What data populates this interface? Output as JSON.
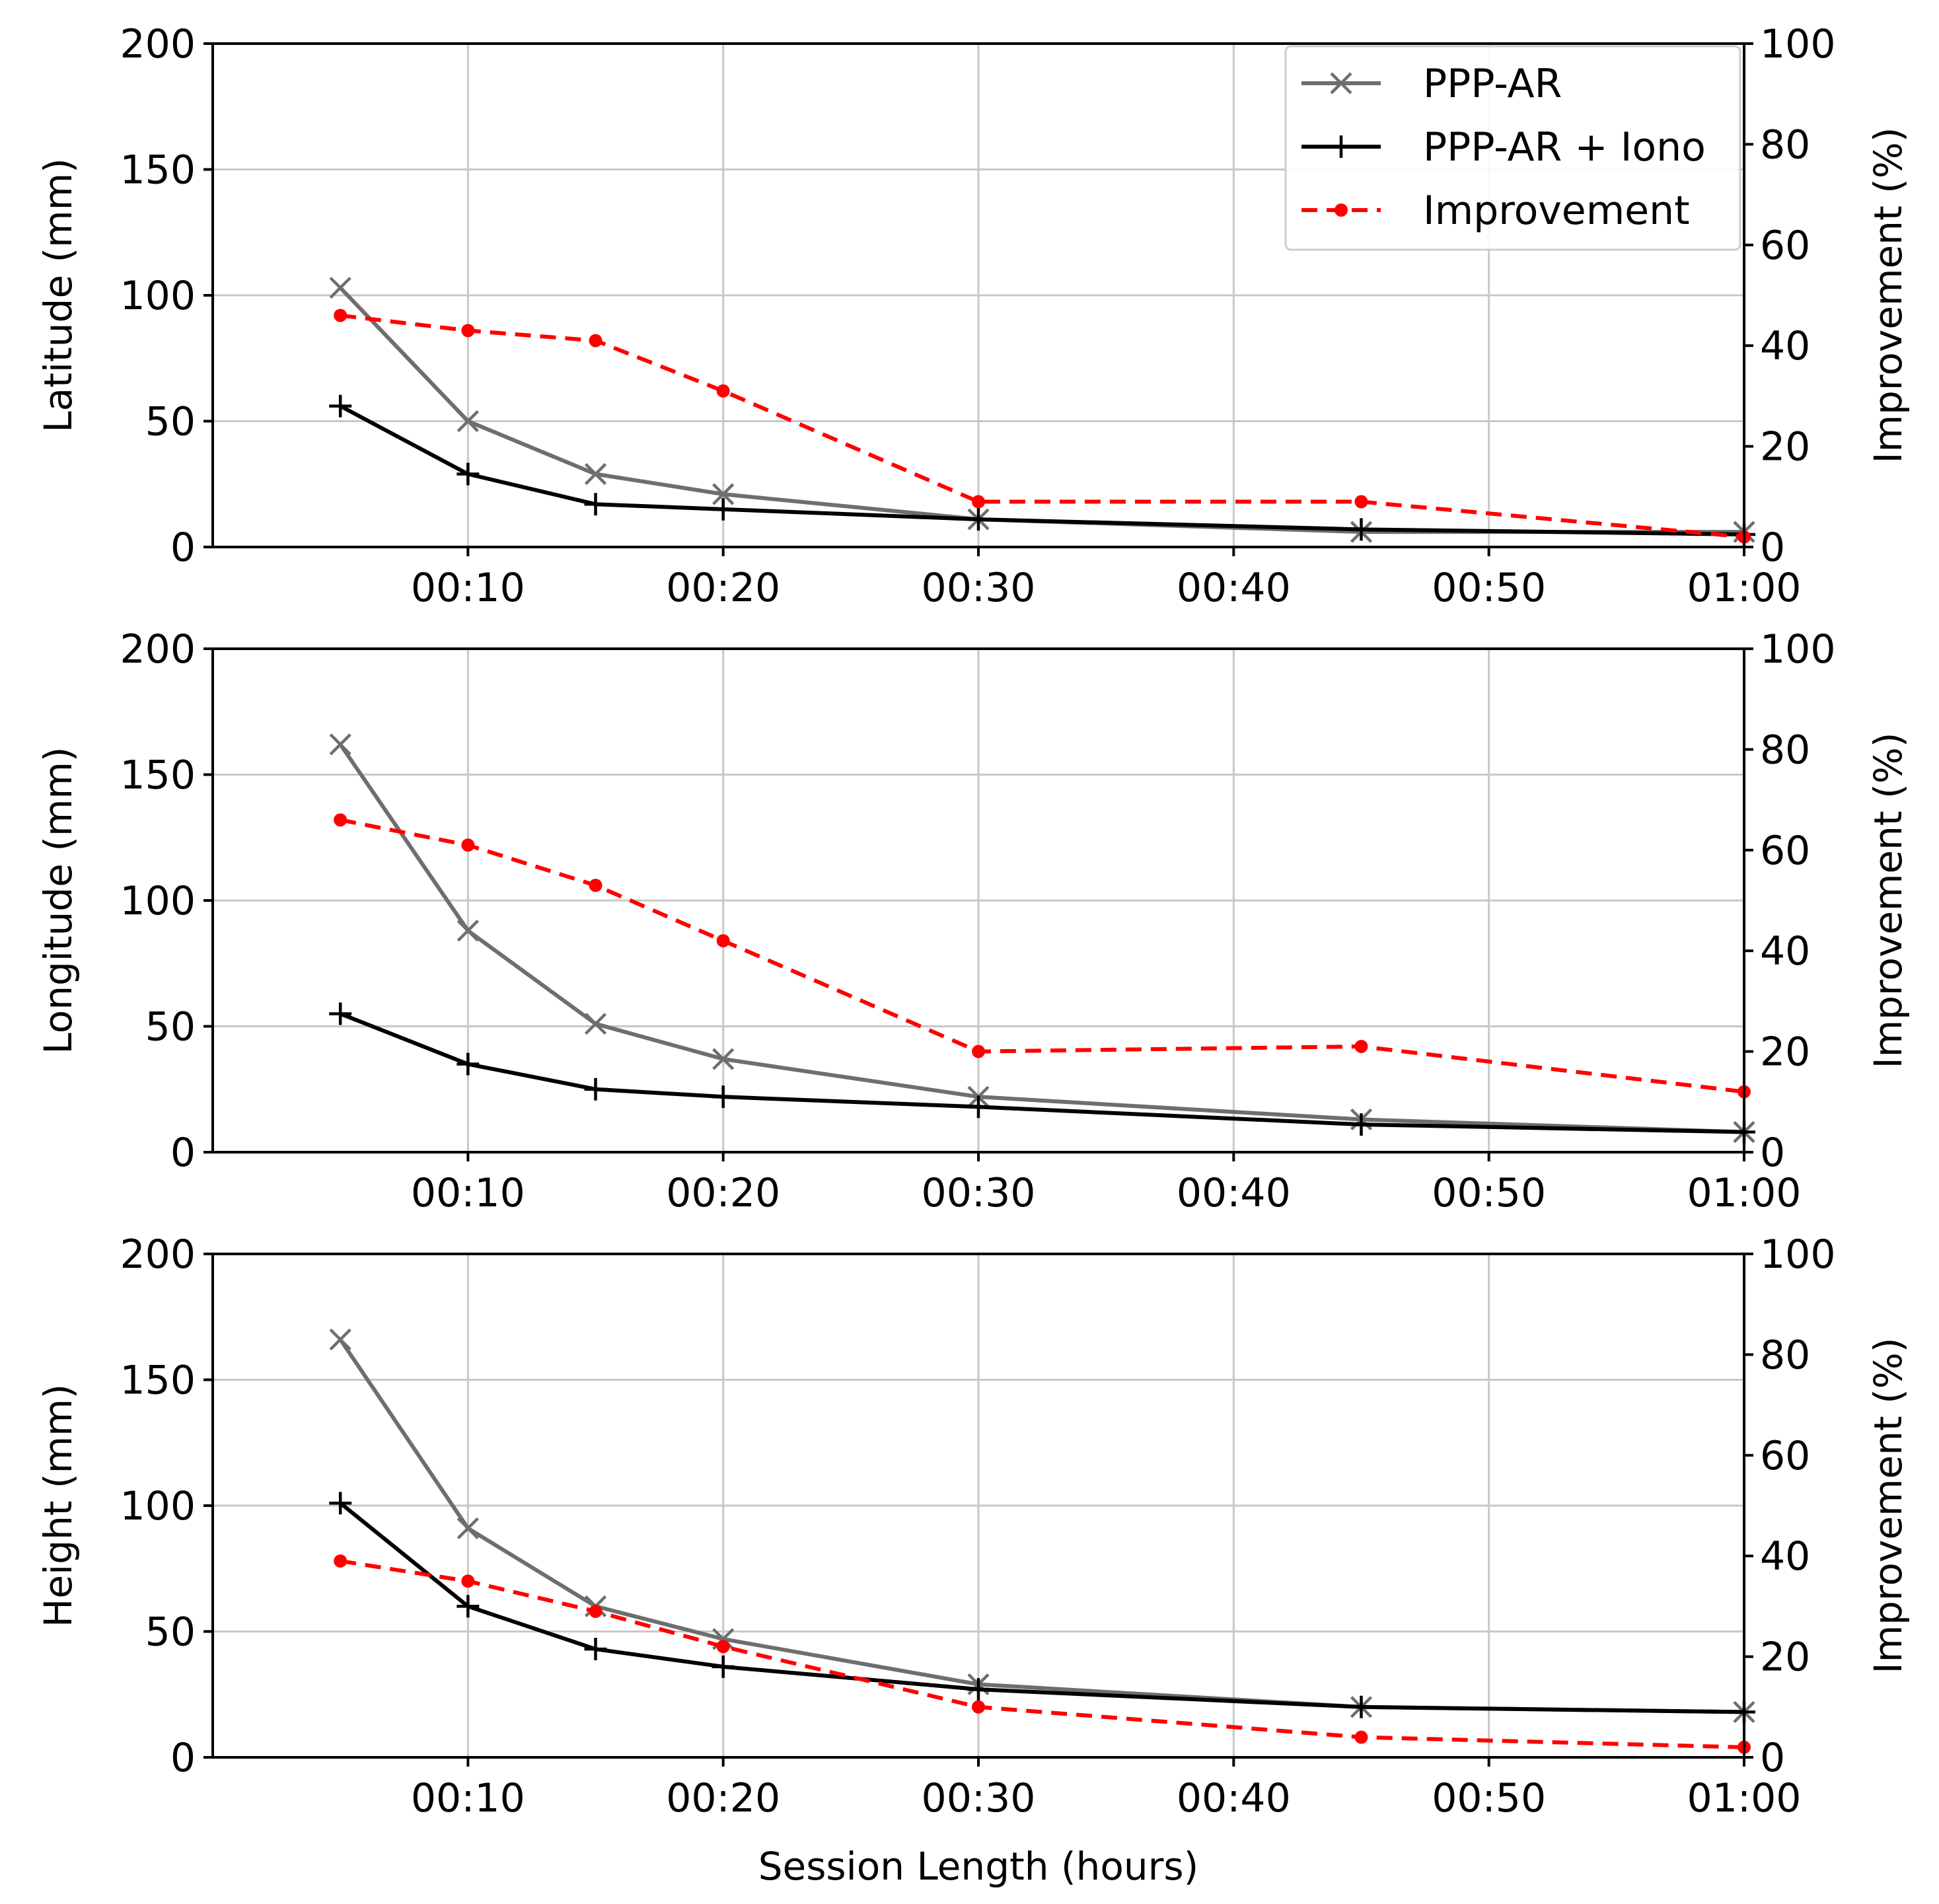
{
  "colors": {
    "ppp_ar": "#6e6e6e",
    "ppp_ar_iono": "#000000",
    "improvement": "#ff0000",
    "grid": "#c8c8c8"
  },
  "chart_data": [
    {
      "type": "line",
      "panel": "latitude",
      "x": [
        5,
        10,
        15,
        20,
        30,
        45,
        60
      ],
      "x_unit": "minutes",
      "xlim": [
        0,
        60
      ],
      "xticks": [
        10,
        20,
        30,
        40,
        50,
        60
      ],
      "xtick_labels": [
        "00:10",
        "00:20",
        "00:30",
        "00:40",
        "00:50",
        "01:00"
      ],
      "xlabel": "",
      "ylabel": "Latitude (mm)",
      "ylim": [
        0,
        200
      ],
      "yticks": [
        0,
        50,
        100,
        150,
        200
      ],
      "y2label": "Improvement (%)",
      "y2lim": [
        0,
        100
      ],
      "y2ticks": [
        0,
        20,
        40,
        60,
        80,
        100
      ],
      "grid": true,
      "legend": "top-right",
      "series": [
        {
          "name": "PPP-AR",
          "axis": "left",
          "marker": "x",
          "values": [
            103,
            50,
            29,
            21,
            11,
            6,
            6
          ]
        },
        {
          "name": "PPP-AR + Iono",
          "axis": "left",
          "marker": "+",
          "values": [
            56,
            29,
            17,
            15,
            11,
            7,
            5
          ]
        },
        {
          "name": "Improvement",
          "axis": "right",
          "marker": "o",
          "dashed": true,
          "values": [
            46,
            43,
            41,
            31,
            9,
            9,
            2
          ]
        }
      ]
    },
    {
      "type": "line",
      "panel": "longitude",
      "x": [
        5,
        10,
        15,
        20,
        30,
        45,
        60
      ],
      "x_unit": "minutes",
      "xlim": [
        0,
        60
      ],
      "xticks": [
        10,
        20,
        30,
        40,
        50,
        60
      ],
      "xtick_labels": [
        "00:10",
        "00:20",
        "00:30",
        "00:40",
        "00:50",
        "01:00"
      ],
      "xlabel": "",
      "ylabel": "Longitude (mm)",
      "ylim": [
        0,
        200
      ],
      "yticks": [
        0,
        50,
        100,
        150,
        200
      ],
      "y2label": "Improvement (%)",
      "y2lim": [
        0,
        100
      ],
      "y2ticks": [
        0,
        20,
        40,
        60,
        80,
        100
      ],
      "grid": true,
      "series": [
        {
          "name": "PPP-AR",
          "axis": "left",
          "marker": "x",
          "values": [
            162,
            88,
            51,
            37,
            22,
            13,
            8
          ]
        },
        {
          "name": "PPP-AR + Iono",
          "axis": "left",
          "marker": "+",
          "values": [
            55,
            35,
            25,
            22,
            18,
            11,
            8
          ]
        },
        {
          "name": "Improvement",
          "axis": "right",
          "marker": "o",
          "dashed": true,
          "values": [
            66,
            61,
            53,
            42,
            20,
            21,
            12
          ]
        }
      ]
    },
    {
      "type": "line",
      "panel": "height",
      "x": [
        5,
        10,
        15,
        20,
        30,
        45,
        60
      ],
      "x_unit": "minutes",
      "xlim": [
        0,
        60
      ],
      "xticks": [
        10,
        20,
        30,
        40,
        50,
        60
      ],
      "xtick_labels": [
        "00:10",
        "00:20",
        "00:30",
        "00:40",
        "00:50",
        "01:00"
      ],
      "xlabel": "Session Length (hours)",
      "ylabel": "Height (mm)",
      "ylim": [
        0,
        200
      ],
      "yticks": [
        0,
        50,
        100,
        150,
        200
      ],
      "y2label": "Improvement (%)",
      "y2lim": [
        0,
        100
      ],
      "y2ticks": [
        0,
        20,
        40,
        60,
        80,
        100
      ],
      "grid": true,
      "series": [
        {
          "name": "PPP-AR",
          "axis": "left",
          "marker": "x",
          "values": [
            166,
            91,
            60,
            47,
            29,
            20,
            18
          ]
        },
        {
          "name": "PPP-AR + Iono",
          "axis": "left",
          "marker": "+",
          "values": [
            101,
            60,
            43,
            36,
            27,
            20,
            18
          ]
        },
        {
          "name": "Improvement",
          "axis": "right",
          "marker": "o",
          "dashed": true,
          "values": [
            39,
            35,
            29,
            22,
            10,
            4,
            2
          ]
        }
      ]
    }
  ]
}
